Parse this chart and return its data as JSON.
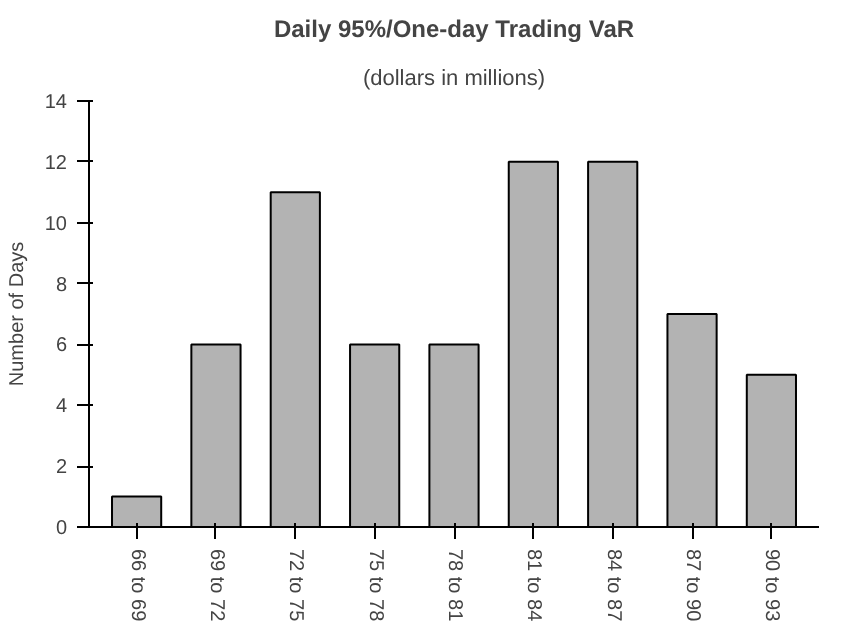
{
  "chart_data": {
    "type": "bar",
    "title": "Daily 95%/One-day Trading VaR",
    "subtitle": "(dollars in millions)",
    "ylabel": "Number of Days",
    "categories": [
      "66 to 69",
      "69 to 72",
      "72 to 75",
      "75 to 78",
      "78 to 81",
      "81 to 84",
      "84 to 87",
      "87 to 90",
      "90 to 93"
    ],
    "values": [
      1,
      6,
      11,
      6,
      6,
      12,
      12,
      7,
      5
    ],
    "color": "#b3b3b3",
    "ylim": [
      0,
      14
    ],
    "yticks": [
      0,
      2,
      4,
      6,
      8,
      10,
      12,
      14
    ],
    "grid": false
  }
}
